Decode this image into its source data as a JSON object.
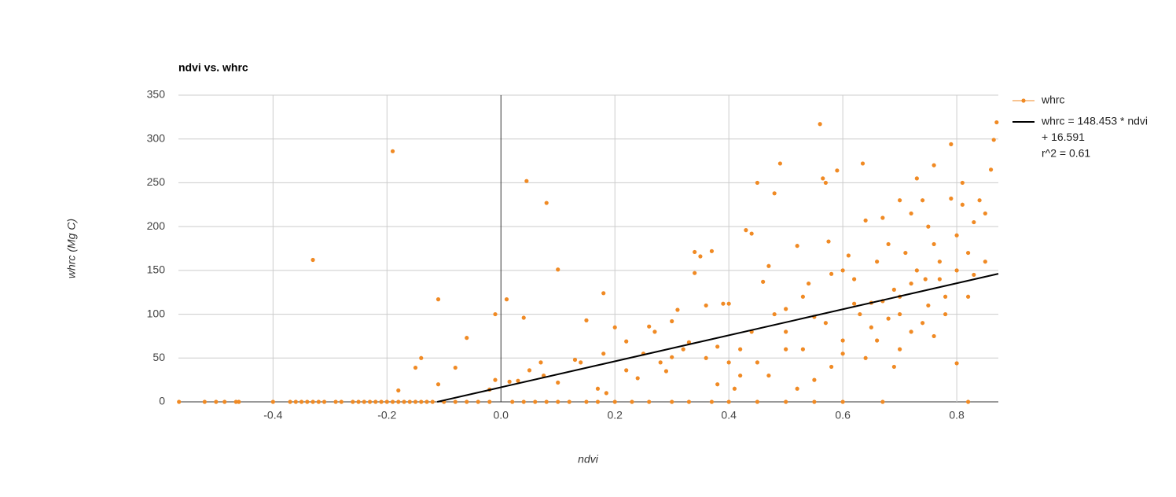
{
  "chart_data": {
    "type": "scatter",
    "title": "ndvi vs. whrc",
    "x_label": "ndvi",
    "y_label": "whrc (Mg C)",
    "xlim": [
      -0.566,
      0.873
    ],
    "ylim": [
      0,
      350
    ],
    "xticks": [
      -0.4,
      -0.2,
      {
        "value": 0,
        "label": "0.0"
      },
      0.2,
      0.4,
      0.6,
      0.8
    ],
    "yticks": [
      0,
      50,
      100,
      150,
      200,
      250,
      300,
      350
    ],
    "grid": true,
    "legend": "right",
    "series": [
      {
        "name": "whrc",
        "color": "#f08a24",
        "x": [
          -0.565,
          -0.52,
          -0.5,
          -0.485,
          -0.465,
          -0.46,
          -0.4,
          -0.37,
          -0.36,
          -0.35,
          -0.34,
          -0.33,
          -0.32,
          -0.31,
          -0.29,
          -0.28,
          -0.26,
          -0.25,
          -0.24,
          -0.23,
          -0.22,
          -0.21,
          -0.2,
          -0.19,
          -0.18,
          -0.17,
          -0.16,
          -0.15,
          -0.14,
          -0.13,
          -0.12,
          -0.1,
          -0.08,
          -0.06,
          -0.04,
          -0.02,
          0.02,
          0.04,
          0.06,
          0.08,
          0.1,
          0.12,
          0.15,
          0.17,
          0.2,
          0.23,
          0.26,
          0.3,
          0.33,
          0.37,
          0.4,
          0.45,
          0.5,
          0.55,
          0.6,
          0.67,
          0.82,
          -0.33,
          -0.19,
          -0.11,
          -0.15,
          -0.14,
          -0.18,
          -0.11,
          -0.08,
          -0.06,
          -0.01,
          0.01,
          -0.01,
          -0.02,
          0.045,
          0.08,
          0.1,
          0.04,
          0.015,
          0.03,
          0.05,
          0.07,
          0.075,
          0.1,
          0.13,
          0.14,
          0.15,
          0.17,
          0.18,
          0.18,
          0.2,
          0.185,
          0.22,
          0.22,
          0.24,
          0.25,
          0.26,
          0.28,
          0.3,
          0.3,
          0.31,
          0.32,
          0.33,
          0.34,
          0.34,
          0.35,
          0.36,
          0.37,
          0.38,
          0.39,
          0.4,
          0.4,
          0.41,
          0.42,
          0.43,
          0.44,
          0.45,
          0.46,
          0.47,
          0.48,
          0.49,
          0.5,
          0.5,
          0.52,
          0.53,
          0.54,
          0.55,
          0.56,
          0.565,
          0.57,
          0.575,
          0.58,
          0.59,
          0.6,
          0.6,
          0.61,
          0.62,
          0.635,
          0.64,
          0.65,
          0.66,
          0.67,
          0.68,
          0.69,
          0.7,
          0.7,
          0.71,
          0.72,
          0.72,
          0.73,
          0.74,
          0.745,
          0.75,
          0.76,
          0.76,
          0.77,
          0.78,
          0.79,
          0.79,
          0.8,
          0.8,
          0.81,
          0.81,
          0.82,
          0.83,
          0.84,
          0.85,
          0.86,
          0.87,
          0.865,
          0.55,
          0.52,
          0.45,
          0.47,
          0.5,
          0.6,
          0.65,
          0.7,
          0.75,
          0.78,
          0.62,
          0.66,
          0.68,
          0.72,
          0.8,
          0.83,
          0.85,
          0.74,
          0.64,
          0.57,
          0.53,
          0.48,
          0.44,
          0.42,
          0.36,
          0.29,
          0.27,
          0.38,
          0.58,
          0.63,
          0.69,
          0.76,
          0.82,
          0.7,
          0.73,
          0.77,
          0.67
        ],
        "values": [
          0,
          0,
          0,
          0,
          0,
          0,
          0,
          0,
          0,
          0,
          0,
          0,
          0,
          0,
          0,
          0,
          0,
          0,
          0,
          0,
          0,
          0,
          0,
          0,
          0,
          0,
          0,
          0,
          0,
          0,
          0,
          0,
          0,
          0,
          0,
          0,
          0,
          0,
          0,
          0,
          0,
          0,
          0,
          0,
          0,
          0,
          0,
          0,
          0,
          0,
          0,
          0,
          0,
          0,
          0,
          0,
          0,
          162,
          286,
          117,
          39,
          50,
          13,
          20,
          39,
          73,
          100,
          117,
          25,
          14,
          252,
          227,
          151,
          96,
          23,
          24,
          36,
          45,
          30,
          22,
          48,
          45,
          93,
          15,
          124,
          55,
          85,
          10,
          69,
          36,
          27,
          55,
          86,
          45,
          51,
          92,
          105,
          60,
          68,
          171,
          147,
          166,
          110,
          172,
          63,
          112,
          112,
          45,
          15,
          60,
          196,
          192,
          250,
          137,
          155,
          238,
          272,
          106,
          80,
          178,
          60,
          135,
          97,
          317,
          255,
          250,
          183,
          146,
          264,
          150,
          70,
          167,
          140,
          272,
          207,
          113,
          160,
          210,
          180,
          128,
          230,
          100,
          170,
          215,
          80,
          255,
          230,
          140,
          200,
          270,
          180,
          160,
          120,
          294,
          232,
          190,
          44,
          250,
          225,
          170,
          205,
          230,
          215,
          265,
          319,
          299,
          25,
          15,
          45,
          30,
          60,
          55,
          85,
          60,
          110,
          100,
          112,
          70,
          95,
          135,
          150,
          145,
          160,
          90,
          50,
          90,
          120,
          100,
          80,
          30,
          50,
          35,
          80,
          20,
          40,
          100,
          40,
          75,
          120,
          120,
          150,
          140,
          115
        ]
      }
    ],
    "trendline": {
      "lines": [
        "whrc = 148.453 * ndvi",
        "+ 16.591",
        "r^2 = 0.61"
      ],
      "slope": 148.453,
      "intercept": 16.591,
      "color": "#000000"
    }
  }
}
